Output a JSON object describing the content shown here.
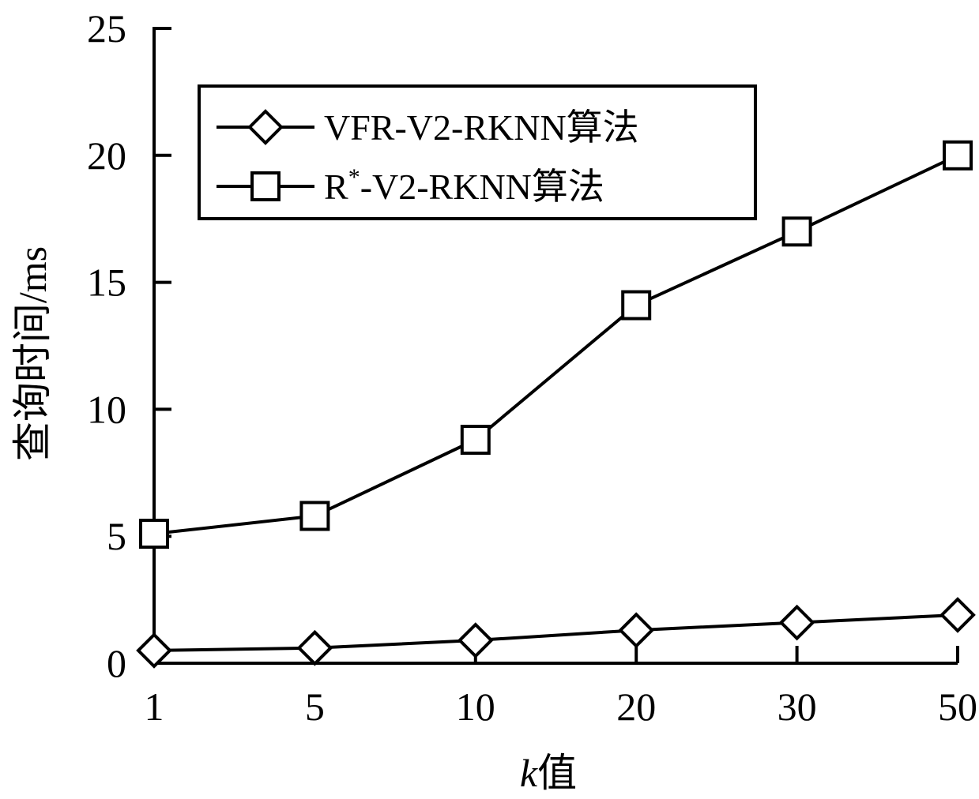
{
  "chart_data": {
    "type": "line",
    "categories": [
      "1",
      "5",
      "10",
      "20",
      "30",
      "50"
    ],
    "series": [
      {
        "name": "VFR-V2-RKNN算法",
        "marker": "diamond",
        "values": [
          0.5,
          0.6,
          0.9,
          1.3,
          1.6,
          1.9
        ]
      },
      {
        "name": "R*-V2-RKNN算法",
        "marker": "square",
        "values": [
          5.1,
          5.8,
          8.8,
          14.1,
          17.0,
          20.0
        ]
      }
    ],
    "xlabel_italic": "k",
    "xlabel_rest": "值",
    "ylabel": "查询时间/ms",
    "ylim": [
      0,
      25
    ],
    "yticks": [
      "0",
      "5",
      "10",
      "15",
      "20",
      "25"
    ],
    "legend": {
      "placement": "top-left",
      "entries": [
        {
          "text": "VFR-V2-RKNN算法"
        },
        {
          "prefix": "R",
          "sup": "*",
          "suffix": "-V2-RKNN算法"
        }
      ]
    },
    "grid": false,
    "line_color": "#000000"
  }
}
